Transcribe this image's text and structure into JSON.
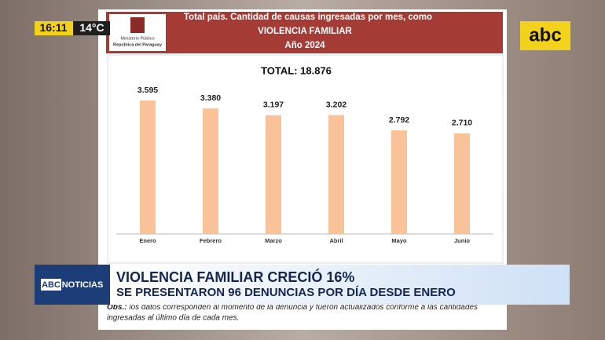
{
  "overlay": {
    "time": "16:11",
    "temperature": "14°C",
    "channel_logo": "abc",
    "bug_brand": "ABC",
    "bug_program": "NOTICIAS",
    "headline": "VIOLENCIA FAMILIAR CRECIÓ 16%",
    "subheadline": "SE PRESENTARON 96 DENUNCIAS POR DÍA DESDE ENERO"
  },
  "logo": {
    "line1": "Ministerio Público",
    "line2": "República del Paraguay"
  },
  "chart_data": {
    "type": "bar",
    "title": "Total país. Cantidad de causas ingresadas por mes, como",
    "subtitle": "VIOLENCIA FAMILIAR",
    "subtitle2": "Año 2024",
    "annotation": "TOTAL: 18.876",
    "categories": [
      "Enero",
      "Febrero",
      "Marzo",
      "Abril",
      "Mayo",
      "Junio"
    ],
    "values": [
      3595,
      3380,
      3197,
      3202,
      2792,
      2710
    ],
    "value_labels": [
      "3.595",
      "3.380",
      "3.197",
      "3.202",
      "2.792",
      "2.710"
    ],
    "color": "#f9c298"
  },
  "footnote": {
    "label": "Obs.:",
    "line1": "los datos corresponden al momento de la denuncia y fueron actualizados conforme a las cantidades",
    "line2": "ingresadas al último día de cada mes."
  }
}
